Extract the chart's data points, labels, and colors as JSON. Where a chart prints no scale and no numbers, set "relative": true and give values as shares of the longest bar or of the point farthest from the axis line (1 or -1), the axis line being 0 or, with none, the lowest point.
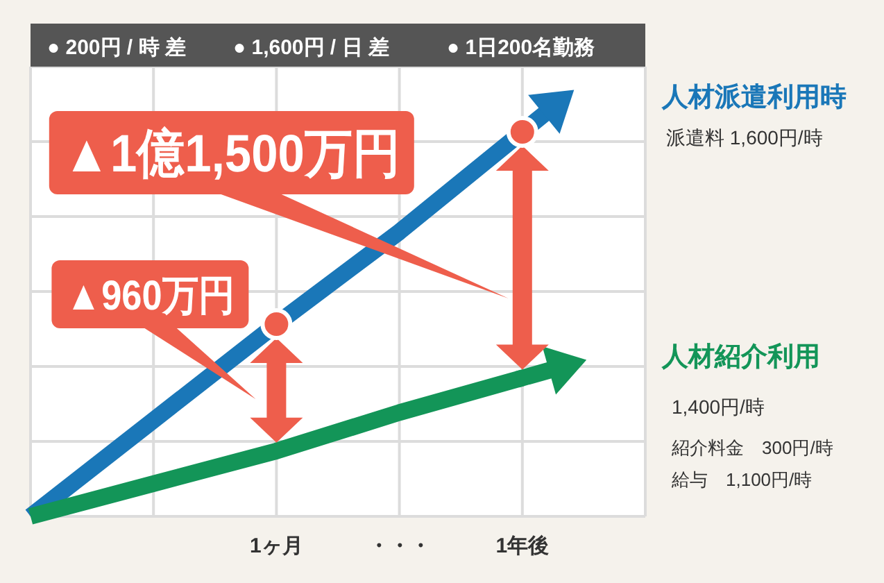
{
  "chart_data": {
    "type": "line",
    "relative": true,
    "categories": [
      null,
      null,
      "1ヶ月",
      "・・・",
      "1年後",
      null
    ],
    "series": [
      {
        "name": "人材派遣利用時",
        "color": "#1a77b8",
        "values": [
          0,
          0.25,
          0.5,
          0.74,
          1,
          null
        ]
      },
      {
        "name": "人材紹介利用",
        "color": "#139558",
        "values": [
          0,
          0.085,
          0.17,
          0.27,
          0.36,
          null
        ]
      }
    ],
    "grid": true,
    "legend": "right",
    "line_style": "solid",
    "annotations": [
      {
        "text": "▲960万円",
        "x": "1ヶ月",
        "y": 0.5
      },
      {
        "text": "▲1億1,500万円",
        "x": "1年後",
        "y": 1
      },
      "● 200円 / 時 差",
      "● 1,600円 / 日 差",
      "● 1日200名勤務",
      "派遣料 1,600円/時",
      "1,400円/時",
      "紹介料金　300円/時",
      "給与　1,100円/時"
    ]
  }
}
